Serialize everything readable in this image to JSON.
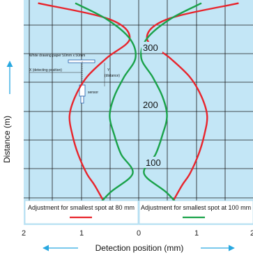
{
  "chart_data": {
    "type": "line",
    "xlabel": "Detection position (mm)",
    "ylabel": "Distance (m)",
    "xlim": [
      -2,
      2
    ],
    "ylim": [
      0,
      350
    ],
    "x_tick_labels": [
      "2",
      "1",
      "0",
      "1",
      "2"
    ],
    "distance_labels": [
      "300",
      "200",
      "100"
    ],
    "grid": true,
    "legend_position": "bottom",
    "series": [
      {
        "name": "Adjustment for smallest spot at 80 mm",
        "color": "#e8242c",
        "points_left": [
          [
            -0.5,
            20
          ],
          [
            -0.75,
            60
          ],
          [
            -0.9,
            80
          ],
          [
            -1.05,
            110
          ],
          [
            -1.15,
            140
          ],
          [
            -1.2,
            170
          ],
          [
            -1.1,
            200
          ],
          [
            -0.9,
            230
          ],
          [
            -0.55,
            260
          ],
          [
            -0.15,
            290
          ],
          [
            -0.5,
            320
          ],
          [
            -1.75,
            345
          ]
        ],
        "points_right": [
          [
            0.5,
            20
          ],
          [
            0.75,
            60
          ],
          [
            0.9,
            80
          ],
          [
            1.05,
            110
          ],
          [
            1.15,
            140
          ],
          [
            1.2,
            170
          ],
          [
            1.1,
            200
          ],
          [
            0.9,
            230
          ],
          [
            0.55,
            260
          ],
          [
            0.15,
            290
          ],
          [
            0.5,
            320
          ],
          [
            1.75,
            345
          ]
        ]
      },
      {
        "name": "Adjustment for smallest spot at 100 mm",
        "color": "#1aa24a",
        "points_left": [
          [
            -0.8,
            20
          ],
          [
            -0.5,
            50
          ],
          [
            -0.1,
            80
          ],
          [
            -0.3,
            110
          ],
          [
            -0.42,
            140
          ],
          [
            -0.5,
            170
          ],
          [
            -0.42,
            200
          ],
          [
            -0.25,
            230
          ],
          [
            -0.05,
            260
          ],
          [
            -0.15,
            290
          ],
          [
            -0.55,
            320
          ],
          [
            -1.1,
            345
          ]
        ],
        "points_right": [
          [
            0.8,
            20
          ],
          [
            0.5,
            50
          ],
          [
            0.1,
            80
          ],
          [
            0.3,
            110
          ],
          [
            0.42,
            140
          ],
          [
            0.5,
            170
          ],
          [
            0.42,
            200
          ],
          [
            0.25,
            230
          ],
          [
            0.05,
            260
          ],
          [
            0.15,
            290
          ],
          [
            0.55,
            320
          ],
          [
            1.1,
            345
          ]
        ]
      }
    ],
    "inset": {
      "paper_label": "White drawing paper 50mm x 50mm",
      "x_label": "X (detecting position)",
      "y_label": "Y",
      "y_sub": "(distance)",
      "sensor_label": "sensor"
    }
  }
}
